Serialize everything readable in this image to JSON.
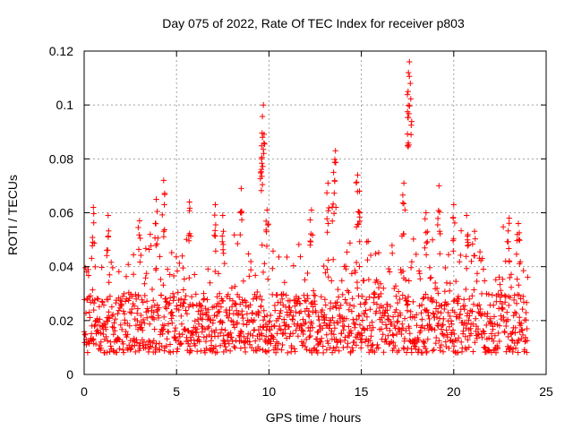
{
  "chart_data": {
    "type": "scatter",
    "title": "Day 075 of 2022, Rate Of TEC Index for receiver p803",
    "xlabel": "GPS time / hours",
    "ylabel": "ROTI / TECUs",
    "xlim": [
      0,
      25
    ],
    "ylim": [
      0,
      0.12
    ],
    "xticks": [
      0,
      5,
      10,
      15,
      20,
      25
    ],
    "xtick_labels": [
      "0",
      "5",
      "10",
      "15",
      "20",
      "25"
    ],
    "yticks": [
      0,
      0.02,
      0.04,
      0.06,
      0.08,
      0.1,
      0.12
    ],
    "ytick_labels": [
      "0",
      "0.02",
      "0.04",
      "0.06",
      "0.08",
      "0.1",
      "0.12"
    ],
    "grid": true,
    "marker": "plus",
    "color": "#ff0000",
    "series": [
      {
        "name": "ROTI",
        "x_range": [
          0,
          24
        ],
        "baseline": 0.017,
        "dense_band": [
          0.008,
          0.03
        ],
        "peaks": [
          {
            "x": 0.5,
            "y": 0.062
          },
          {
            "x": 1.3,
            "y": 0.059
          },
          {
            "x": 3.0,
            "y": 0.057
          },
          {
            "x": 3.9,
            "y": 0.065
          },
          {
            "x": 4.3,
            "y": 0.072
          },
          {
            "x": 5.7,
            "y": 0.064
          },
          {
            "x": 7.1,
            "y": 0.063
          },
          {
            "x": 7.5,
            "y": 0.059
          },
          {
            "x": 8.5,
            "y": 0.069
          },
          {
            "x": 9.7,
            "y": 0.1
          },
          {
            "x": 9.65,
            "y": 0.088
          },
          {
            "x": 9.6,
            "y": 0.08
          },
          {
            "x": 9.9,
            "y": 0.061
          },
          {
            "x": 12.3,
            "y": 0.061
          },
          {
            "x": 13.2,
            "y": 0.071
          },
          {
            "x": 13.6,
            "y": 0.083
          },
          {
            "x": 13.5,
            "y": 0.075
          },
          {
            "x": 14.8,
            "y": 0.074
          },
          {
            "x": 14.9,
            "y": 0.068
          },
          {
            "x": 17.3,
            "y": 0.071
          },
          {
            "x": 17.6,
            "y": 0.116
          },
          {
            "x": 17.55,
            "y": 0.112
          },
          {
            "x": 17.65,
            "y": 0.108
          },
          {
            "x": 18.5,
            "y": 0.06
          },
          {
            "x": 19.2,
            "y": 0.07
          },
          {
            "x": 20.0,
            "y": 0.063
          },
          {
            "x": 20.7,
            "y": 0.059
          },
          {
            "x": 23.0,
            "y": 0.058
          },
          {
            "x": 23.5,
            "y": 0.056
          }
        ]
      }
    ]
  }
}
